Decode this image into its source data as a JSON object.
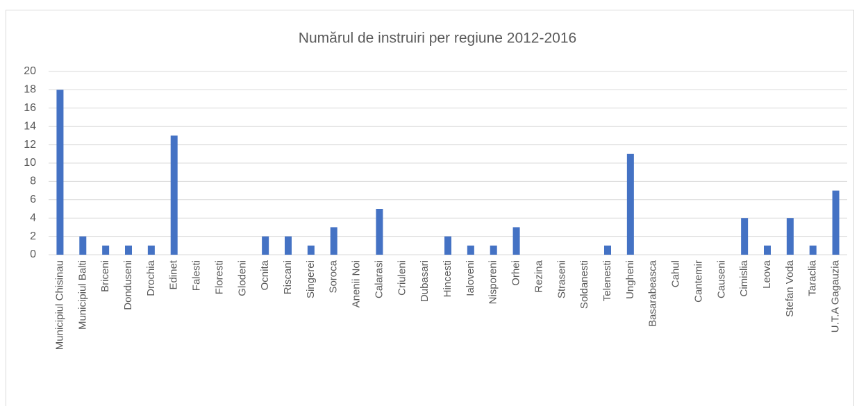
{
  "chart_data": {
    "type": "bar",
    "title": "Numărul de instruiri per regiune 2012-2016",
    "categories": [
      "Municipiul Chisinau",
      "Municipiul Balti",
      "Briceni",
      "Donduseni",
      "Drochia",
      "Edinet",
      "Falesti",
      "Floresti",
      "Glodeni",
      "Ocnita",
      "Riscani",
      "Singerei",
      "Soroca",
      "Anenii Noi",
      "Calarasi",
      "Criuleni",
      "Dubasari",
      "Hincesti",
      "Ialoveni",
      "Nisporeni",
      "Orhei",
      "Rezina",
      "Straseni",
      "Soldanesti",
      "Telenesti",
      "Ungheni",
      "Basarabeasca",
      "Cahul",
      "Cantemir",
      "Causeni",
      "Cimislia",
      "Leova",
      "Stefan Voda",
      "Taraclia",
      "U.T.A Gagauzia"
    ],
    "values": [
      18,
      2,
      1,
      1,
      1,
      13,
      0,
      0,
      0,
      2,
      2,
      1,
      3,
      0,
      5,
      0,
      0,
      2,
      1,
      1,
      3,
      0,
      0,
      0,
      1,
      11,
      0,
      0,
      0,
      0,
      4,
      1,
      4,
      1,
      7
    ],
    "color": "#4472c4",
    "ylim": [
      0,
      20
    ],
    "yticks": [
      0,
      2,
      4,
      6,
      8,
      10,
      12,
      14,
      16,
      18,
      20
    ],
    "grid": true
  }
}
